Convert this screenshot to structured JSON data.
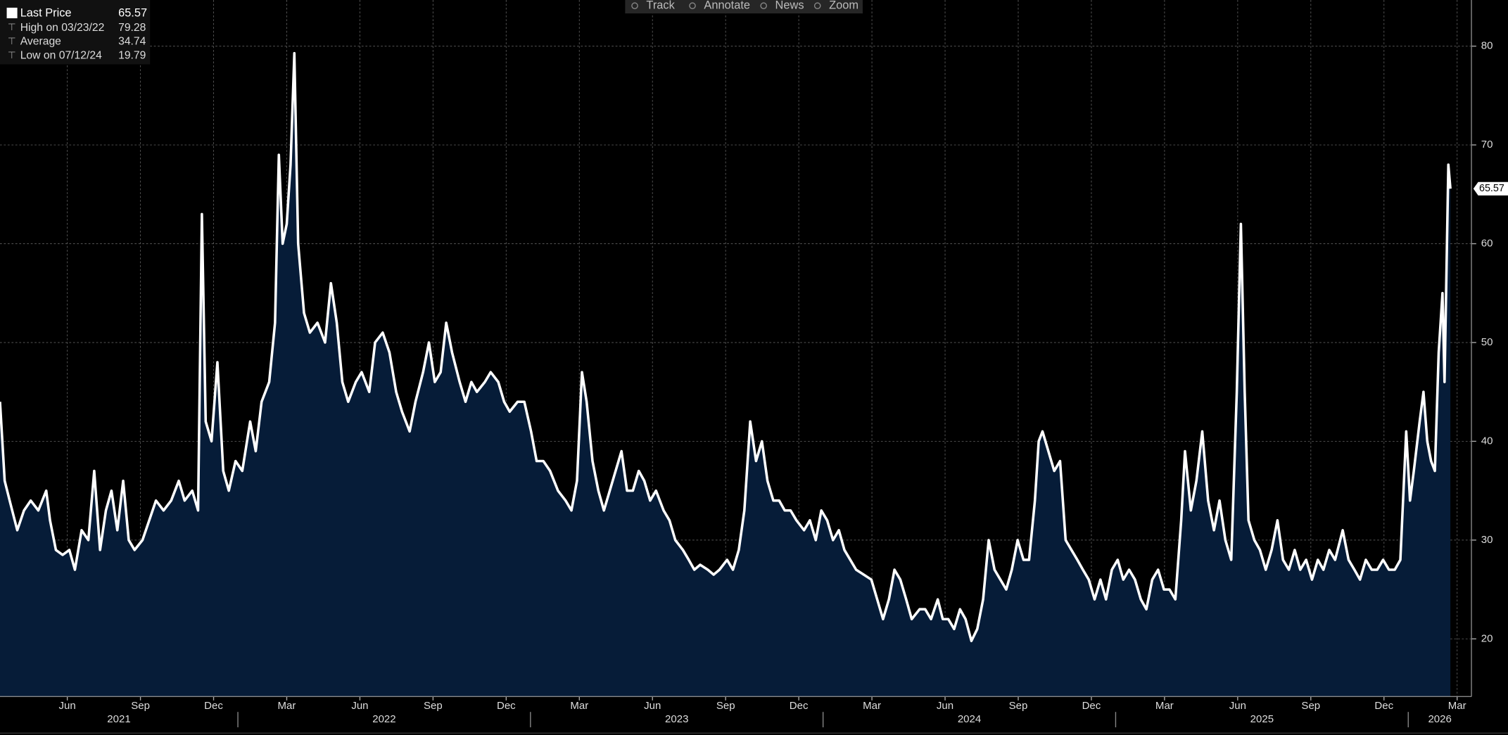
{
  "chart_data": {
    "type": "area",
    "series": [
      {
        "name": "Last Price",
        "color": "#ffffff",
        "fill": "#061c38",
        "x": [
          2021.187,
          2021.203,
          2021.22,
          2021.246,
          2021.269,
          2021.292,
          2021.318,
          2021.345,
          2021.358,
          2021.378,
          2021.401,
          2021.424,
          2021.443,
          2021.466,
          2021.489,
          2021.509,
          2021.529,
          2021.549,
          2021.568,
          2021.588,
          2021.608,
          2021.627,
          2021.647,
          2021.674,
          2021.697,
          2021.72,
          2021.746,
          2021.772,
          2021.798,
          2021.818,
          2021.844,
          2021.864,
          2021.877,
          2021.89,
          2021.91,
          2021.93,
          2021.95,
          2021.969,
          2021.992,
          2022.015,
          2022.042,
          2022.061,
          2022.081,
          2022.107,
          2022.127,
          2022.14,
          2022.153,
          2022.167,
          2022.18,
          2022.193,
          2022.206,
          2022.226,
          2022.246,
          2022.272,
          2022.298,
          2022.318,
          2022.338,
          2022.357,
          2022.377,
          2022.403,
          2022.423,
          2022.449,
          2022.469,
          2022.495,
          2022.518,
          2022.541,
          2022.561,
          2022.587,
          2022.607,
          2022.633,
          2022.653,
          2022.673,
          2022.693,
          2022.712,
          2022.732,
          2022.758,
          2022.778,
          2022.798,
          2022.817,
          2022.844,
          2022.864,
          2022.89,
          2022.91,
          2022.929,
          2022.956,
          2022.979,
          2023.002,
          2023.021,
          2023.044,
          2023.067,
          2023.094,
          2023.12,
          2023.14,
          2023.159,
          2023.176,
          2023.192,
          2023.212,
          2023.232,
          2023.251,
          2023.271,
          2023.291,
          2023.311,
          2023.33,
          2023.35,
          2023.37,
          2023.389,
          2023.409,
          2023.429,
          2023.455,
          2023.475,
          2023.495,
          2023.521,
          2023.541,
          2023.56,
          2023.58,
          2023.606,
          2023.626,
          2023.646,
          2023.672,
          2023.692,
          2023.712,
          2023.731,
          2023.751,
          2023.771,
          2023.791,
          2023.81,
          2023.83,
          2023.85,
          2023.869,
          2023.889,
          2023.909,
          2023.935,
          2023.955,
          2023.975,
          2023.994,
          2024.014,
          2024.034,
          2024.054,
          2024.073,
          2024.093,
          2024.113,
          2024.139,
          2024.165,
          2024.185,
          2024.205,
          2024.225,
          2024.244,
          2024.264,
          2024.284,
          2024.303,
          2024.33,
          2024.349,
          2024.369,
          2024.392,
          2024.409,
          2024.428,
          2024.448,
          2024.468,
          2024.487,
          2024.507,
          2024.527,
          2024.547,
          2024.566,
          2024.586,
          2024.606,
          2024.626,
          2024.645,
          2024.665,
          2024.685,
          2024.704,
          2024.724,
          2024.737,
          2024.75,
          2024.77,
          2024.79,
          2024.81,
          2024.829,
          2024.849,
          2024.869,
          2024.888,
          2024.908,
          2024.928,
          2024.948,
          2024.967,
          2024.987,
          2025.007,
          2025.026,
          2025.046,
          2025.066,
          2025.086,
          2025.105,
          2025.125,
          2025.145,
          2025.165,
          2025.184,
          2025.204,
          2025.224,
          2025.237,
          2025.257,
          2025.276,
          2025.296,
          2025.316,
          2025.336,
          2025.355,
          2025.375,
          2025.395,
          2025.414,
          2025.428,
          2025.441,
          2025.454,
          2025.474,
          2025.493,
          2025.513,
          2025.533,
          2025.553,
          2025.572,
          2025.592,
          2025.612,
          2025.631,
          2025.651,
          2025.671,
          2025.691,
          2025.71,
          2025.73,
          2025.75,
          2025.776,
          2025.796,
          2025.816,
          2025.835,
          2025.855,
          2025.875,
          2025.894,
          2025.914,
          2025.934,
          2025.954,
          2025.973,
          2025.993,
          2026.006,
          2026.019,
          2026.039,
          2026.052,
          2026.065,
          2026.078,
          2026.091,
          2026.104,
          2026.117,
          2026.124,
          2026.137,
          2026.144
        ],
        "values": [
          44,
          36,
          34,
          31,
          33,
          34,
          33,
          35,
          32,
          29,
          28.5,
          29,
          27,
          31,
          30,
          37,
          29,
          33,
          35,
          31,
          36,
          30,
          29,
          30,
          32,
          34,
          33,
          34,
          36,
          34,
          35,
          33,
          63,
          42,
          40,
          48,
          37,
          35,
          38,
          37,
          42,
          39,
          44,
          46,
          52,
          69,
          60,
          62,
          68,
          79.28,
          60,
          53,
          51,
          52,
          50,
          56,
          52,
          46,
          44,
          46,
          47,
          45,
          50,
          51,
          49,
          45,
          43,
          41,
          44,
          47,
          50,
          46,
          47,
          52,
          49,
          46,
          44,
          46,
          45,
          46,
          47,
          46,
          44,
          43,
          44,
          44,
          41,
          38,
          38,
          37,
          35,
          34,
          33,
          36,
          47,
          44,
          38,
          35,
          33,
          35,
          37,
          39,
          35,
          35,
          37,
          36,
          34,
          35,
          33,
          32,
          30,
          29,
          28,
          27,
          27.5,
          27,
          26.5,
          27,
          28,
          27,
          29,
          33,
          42,
          38,
          40,
          36,
          34,
          34,
          33,
          33,
          32,
          31,
          32,
          30,
          33,
          32,
          30,
          31,
          29,
          28,
          27,
          26.5,
          26,
          24,
          22,
          24,
          27,
          26,
          24,
          22,
          23,
          23,
          22,
          24,
          22,
          22,
          21,
          23,
          22,
          19.79,
          21,
          24,
          30,
          27,
          26,
          25,
          27,
          30,
          28,
          28,
          34,
          40,
          41,
          39,
          37,
          38,
          30,
          29,
          28,
          27,
          26,
          24,
          26,
          24,
          27,
          28,
          26,
          27,
          26,
          24,
          23,
          26,
          27,
          25,
          25,
          24,
          32,
          39,
          33,
          36,
          41,
          34,
          31,
          34,
          30,
          28,
          45,
          62,
          45,
          32,
          30,
          29,
          27,
          29,
          32,
          28,
          27,
          29,
          27,
          28,
          26,
          28,
          27,
          29,
          28,
          31,
          28,
          27,
          26,
          28,
          27,
          27,
          28,
          27,
          27,
          28,
          41,
          34,
          37,
          42,
          45,
          40,
          38,
          37,
          49,
          55,
          46,
          68,
          65.57
        ]
      }
    ],
    "stats": [
      {
        "label": "High on 03/23/22",
        "value": 79.28
      },
      {
        "label": "Average",
        "value": 34.74
      },
      {
        "label": "Low on 07/12/24",
        "value": 19.79
      }
    ],
    "xlim": [
      2021.187,
      2026.216
    ],
    "ylim": [
      14.16,
      84.67
    ],
    "yticks": [
      20,
      30,
      40,
      50,
      60,
      70,
      80
    ],
    "xticks": [
      {
        "value": 2021.417,
        "label": "Jun"
      },
      {
        "value": 2021.667,
        "label": "Sep"
      },
      {
        "value": 2021.917,
        "label": "Dec"
      },
      {
        "value": 2022.167,
        "label": "Mar"
      },
      {
        "value": 2022.417,
        "label": "Jun"
      },
      {
        "value": 2022.667,
        "label": "Sep"
      },
      {
        "value": 2022.917,
        "label": "Dec"
      },
      {
        "value": 2023.167,
        "label": "Mar"
      },
      {
        "value": 2023.417,
        "label": "Jun"
      },
      {
        "value": 2023.667,
        "label": "Sep"
      },
      {
        "value": 2023.917,
        "label": "Dec"
      },
      {
        "value": 2024.167,
        "label": "Mar"
      },
      {
        "value": 2024.417,
        "label": "Jun"
      },
      {
        "value": 2024.667,
        "label": "Sep"
      },
      {
        "value": 2024.917,
        "label": "Dec"
      },
      {
        "value": 2025.167,
        "label": "Mar"
      },
      {
        "value": 2025.417,
        "label": "Jun"
      },
      {
        "value": 2025.667,
        "label": "Sep"
      },
      {
        "value": 2025.917,
        "label": "Dec"
      },
      {
        "value": 2026.167,
        "label": "Mar"
      }
    ],
    "years": [
      2021,
      2022,
      2023,
      2024,
      2025,
      2026
    ],
    "grid": true
  },
  "toolbar": [
    "Track",
    "Annotate",
    "News",
    "Zoom"
  ]
}
